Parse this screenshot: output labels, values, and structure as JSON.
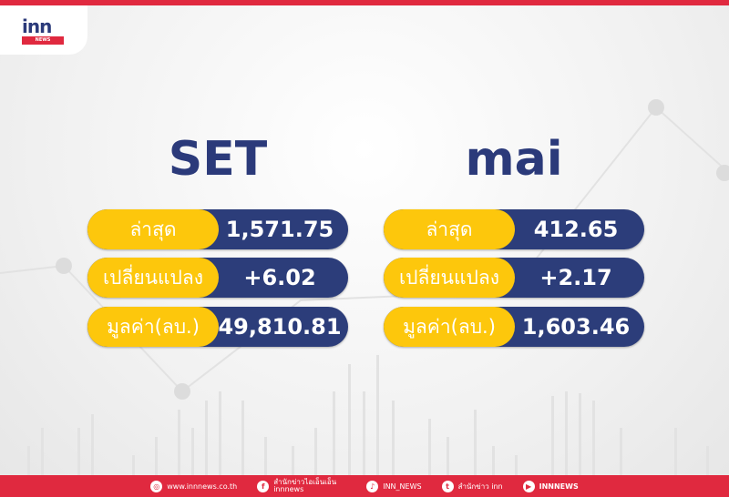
{
  "logo": {
    "text": "inn",
    "sub": "NEWS"
  },
  "colors": {
    "navy": "#2c3d7a",
    "yellow": "#fdc70c",
    "red": "#e0293f"
  },
  "set": {
    "title": "SET",
    "rows": [
      {
        "label": "ล่าสุด",
        "value": "1,571.75"
      },
      {
        "label": "เปลี่ยนแปลง",
        "value": "+6.02"
      },
      {
        "label": "มูลค่า(ลบ.)",
        "value": "49,810.81"
      }
    ]
  },
  "mai": {
    "title": "mai",
    "rows": [
      {
        "label": "ล่าสุด",
        "value": "412.65"
      },
      {
        "label": "เปลี่ยนแปลง",
        "value": "+2.17"
      },
      {
        "label": "มูลค่า(ลบ.)",
        "value": "1,603.46"
      }
    ]
  },
  "footer": [
    {
      "icon": "globe-icon",
      "text": "www.innnews.co.th"
    },
    {
      "icon": "facebook-icon",
      "text": "สำนักข่าวไอเอ็นเอ็น innnews"
    },
    {
      "icon": "tiktok-icon",
      "text": "INN_NEWS"
    },
    {
      "icon": "twitter-icon",
      "text": "สำนักข่าว inn"
    },
    {
      "icon": "youtube-icon",
      "text": "INNNEWS"
    }
  ]
}
